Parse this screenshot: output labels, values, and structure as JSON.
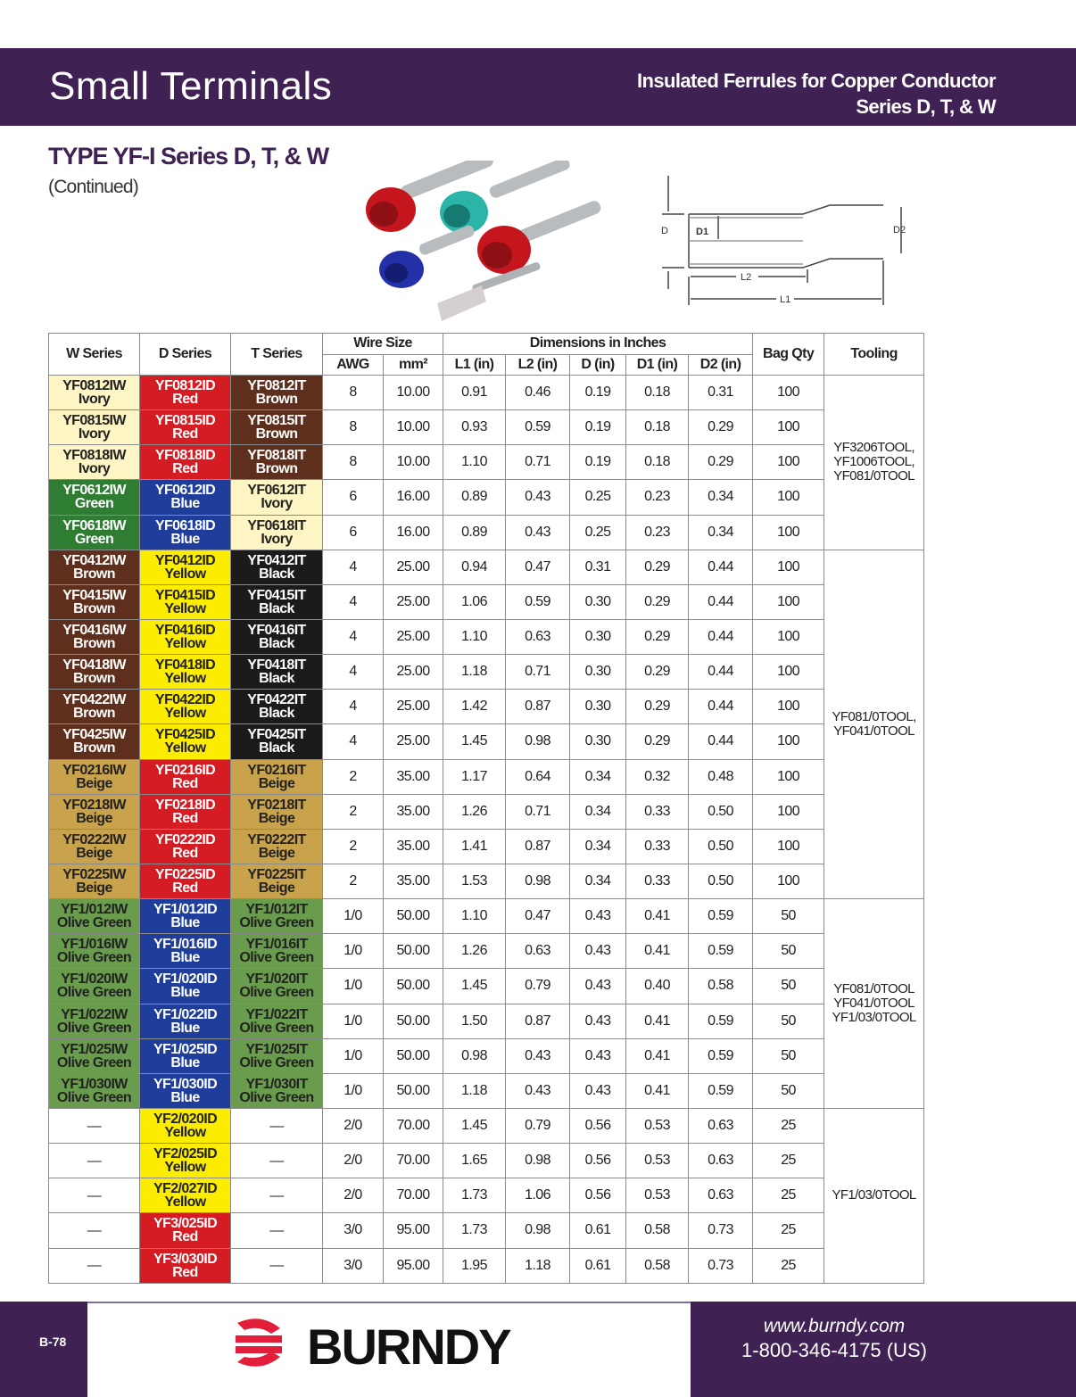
{
  "header": {
    "title": "Small Terminals",
    "subtitle_line1": "Insulated Ferrules for Copper Conductor",
    "subtitle_line2": "Series D, T, & W"
  },
  "section": {
    "title": "TYPE YF-I Series D, T, & W",
    "note": "(Continued)"
  },
  "diagram": {
    "labels": {
      "d": "D",
      "d1": "D1",
      "d2": "D2",
      "l1": "L1",
      "l2": "L2"
    }
  },
  "colors": {
    "brand": "#3f2253",
    "Ivory": "#fdf6c4",
    "Red": "#d41c22",
    "Brown": "#5e2f1c",
    "Green": "#2e7d32",
    "Blue": "#1f3e9c",
    "Yellow": "#fbec00",
    "Black": "#1c1a1b",
    "Beige": "#c9a24c",
    "Olive Green": "#6a9c4d"
  },
  "table": {
    "headers": {
      "w": "W Series",
      "d": "D Series",
      "t": "T Series",
      "wire": "Wire Size",
      "awg": "AWG",
      "mm2": "mm²",
      "dims": "Dimensions in Inches",
      "l1": "L1 (in)",
      "l2": "L2 (in)",
      "d_in": "D (in)",
      "d1": "D1 (in)",
      "d2": "D2 (in)",
      "qty": "Bag Qty",
      "tool": "Tooling"
    },
    "rows": [
      {
        "w": "YF0812IW",
        "wc": "Ivory",
        "d": "YF0812ID",
        "dc": "Red",
        "t": "YF0812IT",
        "tc": "Brown",
        "awg": "8",
        "mm2": "10.00",
        "l1": "0.91",
        "l2": "0.46",
        "di": "0.19",
        "d1": "0.18",
        "d2": "0.31",
        "qty": "100"
      },
      {
        "w": "YF0815IW",
        "wc": "Ivory",
        "d": "YF0815ID",
        "dc": "Red",
        "t": "YF0815IT",
        "tc": "Brown",
        "awg": "8",
        "mm2": "10.00",
        "l1": "0.93",
        "l2": "0.59",
        "di": "0.19",
        "d1": "0.18",
        "d2": "0.29",
        "qty": "100"
      },
      {
        "w": "YF0818IW",
        "wc": "Ivory",
        "d": "YF0818ID",
        "dc": "Red",
        "t": "YF0818IT",
        "tc": "Brown",
        "awg": "8",
        "mm2": "10.00",
        "l1": "1.10",
        "l2": "0.71",
        "di": "0.19",
        "d1": "0.18",
        "d2": "0.29",
        "qty": "100"
      },
      {
        "w": "YF0612IW",
        "wc": "Green",
        "d": "YF0612ID",
        "dc": "Blue",
        "t": "YF0612IT",
        "tc": "Ivory",
        "awg": "6",
        "mm2": "16.00",
        "l1": "0.89",
        "l2": "0.43",
        "di": "0.25",
        "d1": "0.23",
        "d2": "0.34",
        "qty": "100"
      },
      {
        "w": "YF0618IW",
        "wc": "Green",
        "d": "YF0618ID",
        "dc": "Blue",
        "t": "YF0618IT",
        "tc": "Ivory",
        "awg": "6",
        "mm2": "16.00",
        "l1": "0.89",
        "l2": "0.43",
        "di": "0.25",
        "d1": "0.23",
        "d2": "0.34",
        "qty": "100"
      },
      {
        "w": "YF0412IW",
        "wc": "Brown",
        "d": "YF0412ID",
        "dc": "Yellow",
        "t": "YF0412IT",
        "tc": "Black",
        "awg": "4",
        "mm2": "25.00",
        "l1": "0.94",
        "l2": "0.47",
        "di": "0.31",
        "d1": "0.29",
        "d2": "0.44",
        "qty": "100"
      },
      {
        "w": "YF0415IW",
        "wc": "Brown",
        "d": "YF0415ID",
        "dc": "Yellow",
        "t": "YF0415IT",
        "tc": "Black",
        "awg": "4",
        "mm2": "25.00",
        "l1": "1.06",
        "l2": "0.59",
        "di": "0.30",
        "d1": "0.29",
        "d2": "0.44",
        "qty": "100"
      },
      {
        "w": "YF0416IW",
        "wc": "Brown",
        "d": "YF0416ID",
        "dc": "Yellow",
        "t": "YF0416IT",
        "tc": "Black",
        "awg": "4",
        "mm2": "25.00",
        "l1": "1.10",
        "l2": "0.63",
        "di": "0.30",
        "d1": "0.29",
        "d2": "0.44",
        "qty": "100"
      },
      {
        "w": "YF0418IW",
        "wc": "Brown",
        "d": "YF0418ID",
        "dc": "Yellow",
        "t": "YF0418IT",
        "tc": "Black",
        "awg": "4",
        "mm2": "25.00",
        "l1": "1.18",
        "l2": "0.71",
        "di": "0.30",
        "d1": "0.29",
        "d2": "0.44",
        "qty": "100"
      },
      {
        "w": "YF0422IW",
        "wc": "Brown",
        "d": "YF0422ID",
        "dc": "Yellow",
        "t": "YF0422IT",
        "tc": "Black",
        "awg": "4",
        "mm2": "25.00",
        "l1": "1.42",
        "l2": "0.87",
        "di": "0.30",
        "d1": "0.29",
        "d2": "0.44",
        "qty": "100"
      },
      {
        "w": "YF0425IW",
        "wc": "Brown",
        "d": "YF0425ID",
        "dc": "Yellow",
        "t": "YF0425IT",
        "tc": "Black",
        "awg": "4",
        "mm2": "25.00",
        "l1": "1.45",
        "l2": "0.98",
        "di": "0.30",
        "d1": "0.29",
        "d2": "0.44",
        "qty": "100"
      },
      {
        "w": "YF0216IW",
        "wc": "Beige",
        "d": "YF0216ID",
        "dc": "Red",
        "t": "YF0216IT",
        "tc": "Beige",
        "awg": "2",
        "mm2": "35.00",
        "l1": "1.17",
        "l2": "0.64",
        "di": "0.34",
        "d1": "0.32",
        "d2": "0.48",
        "qty": "100"
      },
      {
        "w": "YF0218IW",
        "wc": "Beige",
        "d": "YF0218ID",
        "dc": "Red",
        "t": "YF0218IT",
        "tc": "Beige",
        "awg": "2",
        "mm2": "35.00",
        "l1": "1.26",
        "l2": "0.71",
        "di": "0.34",
        "d1": "0.33",
        "d2": "0.50",
        "qty": "100"
      },
      {
        "w": "YF0222IW",
        "wc": "Beige",
        "d": "YF0222ID",
        "dc": "Red",
        "t": "YF0222IT",
        "tc": "Beige",
        "awg": "2",
        "mm2": "35.00",
        "l1": "1.41",
        "l2": "0.87",
        "di": "0.34",
        "d1": "0.33",
        "d2": "0.50",
        "qty": "100"
      },
      {
        "w": "YF0225IW",
        "wc": "Beige",
        "d": "YF0225ID",
        "dc": "Red",
        "t": "YF0225IT",
        "tc": "Beige",
        "awg": "2",
        "mm2": "35.00",
        "l1": "1.53",
        "l2": "0.98",
        "di": "0.34",
        "d1": "0.33",
        "d2": "0.50",
        "qty": "100"
      },
      {
        "w": "YF1/012IW",
        "wc": "Olive Green",
        "d": "YF1/012ID",
        "dc": "Blue",
        "t": "YF1/012IT",
        "tc": "Olive Green",
        "awg": "1/0",
        "mm2": "50.00",
        "l1": "1.10",
        "l2": "0.47",
        "di": "0.43",
        "d1": "0.41",
        "d2": "0.59",
        "qty": "50"
      },
      {
        "w": "YF1/016IW",
        "wc": "Olive Green",
        "d": "YF1/016ID",
        "dc": "Blue",
        "t": "YF1/016IT",
        "tc": "Olive Green",
        "awg": "1/0",
        "mm2": "50.00",
        "l1": "1.26",
        "l2": "0.63",
        "di": "0.43",
        "d1": "0.41",
        "d2": "0.59",
        "qty": "50"
      },
      {
        "w": "YF1/020IW",
        "wc": "Olive Green",
        "d": "YF1/020ID",
        "dc": "Blue",
        "t": "YF1/020IT",
        "tc": "Olive Green",
        "awg": "1/0",
        "mm2": "50.00",
        "l1": "1.45",
        "l2": "0.79",
        "di": "0.43",
        "d1": "0.40",
        "d2": "0.58",
        "qty": "50"
      },
      {
        "w": "YF1/022IW",
        "wc": "Olive Green",
        "d": "YF1/022ID",
        "dc": "Blue",
        "t": "YF1/022IT",
        "tc": "Olive Green",
        "awg": "1/0",
        "mm2": "50.00",
        "l1": "1.50",
        "l2": "0.87",
        "di": "0.43",
        "d1": "0.41",
        "d2": "0.59",
        "qty": "50"
      },
      {
        "w": "YF1/025IW",
        "wc": "Olive Green",
        "d": "YF1/025ID",
        "dc": "Blue",
        "t": "YF1/025IT",
        "tc": "Olive Green",
        "awg": "1/0",
        "mm2": "50.00",
        "l1": "0.98",
        "l2": "0.43",
        "di": "0.43",
        "d1": "0.41",
        "d2": "0.59",
        "qty": "50"
      },
      {
        "w": "YF1/030IW",
        "wc": "Olive Green",
        "d": "YF1/030ID",
        "dc": "Blue",
        "t": "YF1/030IT",
        "tc": "Olive Green",
        "awg": "1/0",
        "mm2": "50.00",
        "l1": "1.18",
        "l2": "0.43",
        "di": "0.43",
        "d1": "0.41",
        "d2": "0.59",
        "qty": "50"
      },
      {
        "w": "—",
        "wc": null,
        "d": "YF2/020ID",
        "dc": "Yellow",
        "t": "—",
        "tc": null,
        "awg": "2/0",
        "mm2": "70.00",
        "l1": "1.45",
        "l2": "0.79",
        "di": "0.56",
        "d1": "0.53",
        "d2": "0.63",
        "qty": "25"
      },
      {
        "w": "—",
        "wc": null,
        "d": "YF2/025ID",
        "dc": "Yellow",
        "t": "—",
        "tc": null,
        "awg": "2/0",
        "mm2": "70.00",
        "l1": "1.65",
        "l2": "0.98",
        "di": "0.56",
        "d1": "0.53",
        "d2": "0.63",
        "qty": "25"
      },
      {
        "w": "—",
        "wc": null,
        "d": "YF2/027ID",
        "dc": "Yellow",
        "t": "—",
        "tc": null,
        "awg": "2/0",
        "mm2": "70.00",
        "l1": "1.73",
        "l2": "1.06",
        "di": "0.56",
        "d1": "0.53",
        "d2": "0.63",
        "qty": "25"
      },
      {
        "w": "—",
        "wc": null,
        "d": "YF3/025ID",
        "dc": "Red",
        "t": "—",
        "tc": null,
        "awg": "3/0",
        "mm2": "95.00",
        "l1": "1.73",
        "l2": "0.98",
        "di": "0.61",
        "d1": "0.58",
        "d2": "0.73",
        "qty": "25"
      },
      {
        "w": "—",
        "wc": null,
        "d": "YF3/030ID",
        "dc": "Red",
        "t": "—",
        "tc": null,
        "awg": "3/0",
        "mm2": "95.00",
        "l1": "1.95",
        "l2": "1.18",
        "di": "0.61",
        "d1": "0.58",
        "d2": "0.73",
        "qty": "25"
      }
    ],
    "tooling": [
      {
        "start": 0,
        "span": 5,
        "lines": [
          "YF3206TOOL,",
          "YF1006TOOL,",
          "YF081/0TOOL"
        ]
      },
      {
        "start": 5,
        "span": 10,
        "lines": [
          "YF081/0TOOL,",
          "YF041/0TOOL"
        ]
      },
      {
        "start": 15,
        "span": 6,
        "lines": [
          "YF081/0TOOL",
          "YF041/0TOOL",
          "YF1/03/0TOOL"
        ]
      },
      {
        "start": 21,
        "span": 5,
        "lines": [
          "YF1/03/0TOOL"
        ]
      }
    ]
  },
  "footer": {
    "page": "B-78",
    "brand": "BURNDY",
    "url": "www.burndy.com",
    "phone": "1-800-346-4175 (US)"
  }
}
